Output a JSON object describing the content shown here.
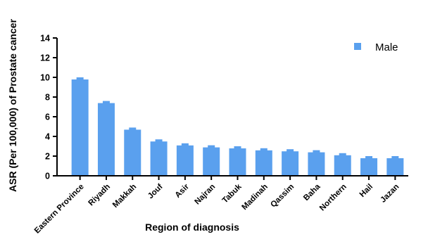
{
  "chart_data": {
    "type": "bar",
    "categories": [
      "Eastern Province",
      "Riyadh",
      "Makkah",
      "Jouf",
      "Asir",
      "Najran",
      "Tabuk",
      "Madinah",
      "Qassim",
      "Baha",
      "Northern",
      "Hail",
      "Jazan"
    ],
    "series": [
      {
        "name": "Male",
        "values": [
          10.0,
          7.6,
          4.9,
          3.7,
          3.3,
          3.1,
          3.0,
          2.8,
          2.7,
          2.6,
          2.3,
          2.0,
          2.0
        ],
        "color": "#5aa0ee"
      }
    ],
    "xlabel": "Region of diagnosis",
    "ylabel": "ASR (Per 100,000) of Prostate cancer",
    "ylim": [
      0,
      14
    ],
    "yticks": [
      0,
      2,
      4,
      6,
      8,
      10,
      12,
      14
    ],
    "grid": false,
    "legend_position": "top-right"
  }
}
